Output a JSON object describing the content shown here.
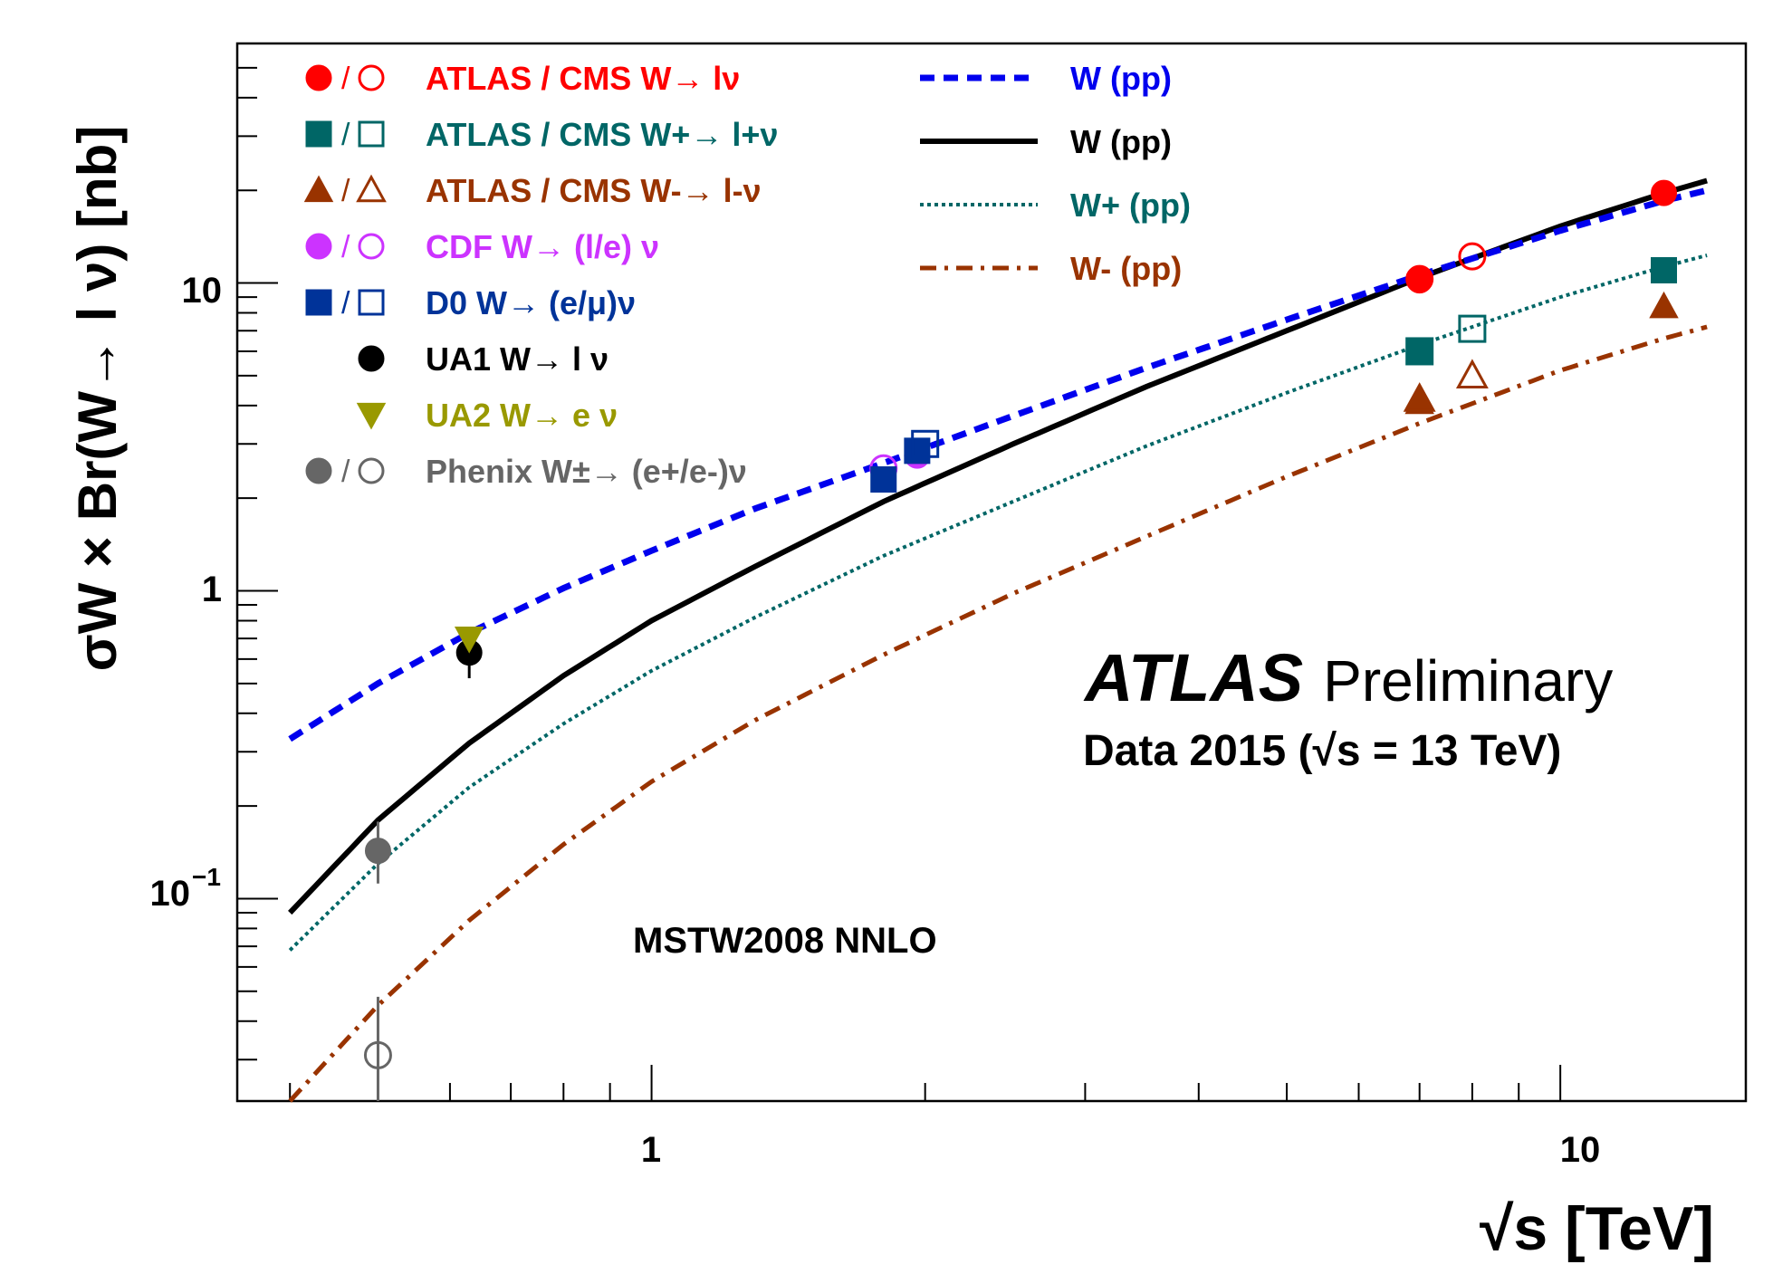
{
  "chart_data": {
    "type": "line",
    "xlabel": "√s [TeV]",
    "ylabel": "σW × Br(W→ l ν) [nb]",
    "x_scale": "log",
    "y_scale": "log",
    "xlim": [
      0.35,
      16
    ],
    "ylim": [
      0.022,
      60
    ],
    "x_tick_labels": [
      {
        "value": 1,
        "label": "1"
      },
      {
        "value": 10,
        "label": "10"
      }
    ],
    "y_tick_labels": [
      {
        "value": 0.1,
        "label": "10−1",
        "base": "10",
        "exp": "−1"
      },
      {
        "value": 1,
        "label": "1"
      },
      {
        "value": 10,
        "label": "10"
      }
    ],
    "annotations": {
      "atlas": "ATLAS",
      "preliminary": "Preliminary",
      "data_line": "Data 2015 (√s = 13 TeV)",
      "pdf": "MSTW2008 NNLO"
    },
    "theory_curves": [
      {
        "name": "W (pp)",
        "style": "dashed",
        "color": "#0000ee",
        "x": [
          0.4,
          0.5,
          0.63,
          0.8,
          1.0,
          1.3,
          1.8,
          2.5,
          3.5,
          5,
          7,
          10,
          13,
          14.5
        ],
        "y": [
          0.33,
          0.5,
          0.73,
          1.02,
          1.35,
          1.85,
          2.6,
          3.7,
          5.3,
          7.6,
          10.6,
          14.8,
          18.5,
          20.0
        ]
      },
      {
        "name": "W (pp)",
        "style": "solid",
        "color": "#000000",
        "x": [
          0.4,
          0.5,
          0.63,
          0.8,
          1.0,
          1.3,
          1.8,
          2.5,
          3.5,
          5,
          7,
          10,
          13,
          14.5
        ],
        "y": [
          0.09,
          0.18,
          0.32,
          0.53,
          0.8,
          1.2,
          1.95,
          3.0,
          4.6,
          7.0,
          10.4,
          15.3,
          19.6,
          21.5
        ]
      },
      {
        "name": "W+ (pp)",
        "style": "dotted",
        "color": "#006666",
        "x": [
          0.4,
          0.5,
          0.63,
          0.8,
          1.0,
          1.3,
          1.8,
          2.5,
          3.5,
          5,
          7,
          10,
          13,
          14.5
        ],
        "y": [
          0.068,
          0.13,
          0.23,
          0.37,
          0.55,
          0.82,
          1.3,
          1.95,
          2.95,
          4.4,
          6.3,
          9.0,
          11.3,
          12.3
        ]
      },
      {
        "name": "W- (pp)",
        "style": "dashdot",
        "color": "#993300",
        "x": [
          0.4,
          0.5,
          0.63,
          0.8,
          1.0,
          1.3,
          1.8,
          2.5,
          3.5,
          5,
          7,
          10,
          13,
          14.5
        ],
        "y": [
          0.022,
          0.045,
          0.085,
          0.15,
          0.24,
          0.38,
          0.62,
          0.98,
          1.5,
          2.35,
          3.5,
          5.2,
          6.6,
          7.2
        ]
      }
    ],
    "data_points": [
      {
        "exp": "ATLAS W→ lν",
        "marker": "circle",
        "filled": true,
        "color": "#ff0000",
        "x": 7,
        "y": 10.2
      },
      {
        "exp": "ATLAS W→ lν",
        "marker": "circle",
        "filled": true,
        "color": "#ff0000",
        "x": 13,
        "y": 19.6
      },
      {
        "exp": "CMS W→ lν",
        "marker": "circle",
        "filled": false,
        "color": "#ff0000",
        "x": 7,
        "y": 10.3
      },
      {
        "exp": "CMS W→ lν",
        "marker": "circle",
        "filled": false,
        "color": "#ff0000",
        "x": 8,
        "y": 12.2
      },
      {
        "exp": "ATLAS W+→ l+ν",
        "marker": "square",
        "filled": true,
        "color": "#006666",
        "x": 7,
        "y": 6.0
      },
      {
        "exp": "ATLAS W+→ l+ν",
        "marker": "square",
        "filled": true,
        "color": "#006666",
        "x": 13,
        "y": 11.0
      },
      {
        "exp": "CMS W+→ l+ν",
        "marker": "square",
        "filled": false,
        "color": "#006666",
        "x": 7,
        "y": 6.0
      },
      {
        "exp": "CMS W+→ l+ν",
        "marker": "square",
        "filled": false,
        "color": "#006666",
        "x": 8,
        "y": 7.1
      },
      {
        "exp": "ATLAS W-→ l-ν",
        "marker": "triangle",
        "filled": true,
        "color": "#993300",
        "x": 7,
        "y": 4.1
      },
      {
        "exp": "ATLAS W-→ l-ν",
        "marker": "triangle",
        "filled": true,
        "color": "#993300",
        "x": 13,
        "y": 8.4
      },
      {
        "exp": "CMS W-→ l-ν",
        "marker": "triangle",
        "filled": false,
        "color": "#993300",
        "x": 7,
        "y": 4.2
      },
      {
        "exp": "CMS W-→ l-ν",
        "marker": "triangle",
        "filled": false,
        "color": "#993300",
        "x": 8,
        "y": 5.0
      },
      {
        "exp": "CDF W→ (l/e) ν",
        "marker": "circle",
        "filled": true,
        "color": "#cc33ff",
        "x": 1.96,
        "y": 2.75
      },
      {
        "exp": "CDF W→ (l/e) ν",
        "marker": "circle",
        "filled": false,
        "color": "#cc33ff",
        "x": 1.8,
        "y": 2.5
      },
      {
        "exp": "D0 W→ (e/μ)ν",
        "marker": "square",
        "filled": true,
        "color": "#003399",
        "x": 1.8,
        "y": 2.3
      },
      {
        "exp": "D0 W→ (e/μ)ν",
        "marker": "square",
        "filled": true,
        "color": "#003399",
        "x": 1.96,
        "y": 2.85
      },
      {
        "exp": "D0 W→ (e/μ)ν",
        "marker": "square",
        "filled": false,
        "color": "#003399",
        "x": 2.0,
        "y": 3.0
      },
      {
        "exp": "UA1 W→ l ν",
        "marker": "circle",
        "filled": true,
        "color": "#000000",
        "x": 0.63,
        "y": 0.63,
        "err": [
          0.52,
          0.76
        ]
      },
      {
        "exp": "UA2 W→ e ν",
        "marker": "triangle-down",
        "filled": true,
        "color": "#999900",
        "x": 0.63,
        "y": 0.7
      },
      {
        "exp": "Phenix W±→ (e+/e-)ν",
        "marker": "circle",
        "filled": true,
        "color": "#666666",
        "x": 0.5,
        "y": 0.143,
        "err": [
          0.112,
          0.178
        ]
      },
      {
        "exp": "Phenix W±→ (e+/e-)ν",
        "marker": "circle",
        "filled": false,
        "color": "#666666",
        "x": 0.5,
        "y": 0.031,
        "err": [
          0.022,
          0.048
        ]
      }
    ],
    "legend_left": [
      {
        "label": "ATLAS / CMS W→ lν",
        "color": "#ff0000",
        "marker": "circle",
        "pair": true
      },
      {
        "label": "ATLAS / CMS W+→ l+ν",
        "color": "#006666",
        "marker": "square",
        "pair": true
      },
      {
        "label": "ATLAS / CMS W-→ l-ν",
        "color": "#993300",
        "marker": "triangle",
        "pair": true
      },
      {
        "label": "CDF W→ (l/e) ν",
        "color": "#cc33ff",
        "marker": "circle",
        "pair": true
      },
      {
        "label": "D0 W→ (e/μ)ν",
        "color": "#003399",
        "marker": "square",
        "pair": true
      },
      {
        "label": "UA1 W→ l ν",
        "color": "#000000",
        "marker": "circle",
        "pair": false
      },
      {
        "label": "UA2 W→ e ν",
        "color": "#999900",
        "marker": "triangle-down",
        "pair": false
      },
      {
        "label": "Phenix W±→ (e+/e-)ν",
        "color": "#666666",
        "marker": "circle",
        "pair": true
      }
    ],
    "legend_right": [
      {
        "label": "W (pp)",
        "color": "#0000ee",
        "style": "dashed"
      },
      {
        "label": "W (pp)",
        "color": "#000000",
        "style": "solid"
      },
      {
        "label": "W+ (pp)",
        "color": "#006666",
        "style": "dotted"
      },
      {
        "label": "W- (pp)",
        "color": "#993300",
        "style": "dashdot"
      }
    ]
  }
}
